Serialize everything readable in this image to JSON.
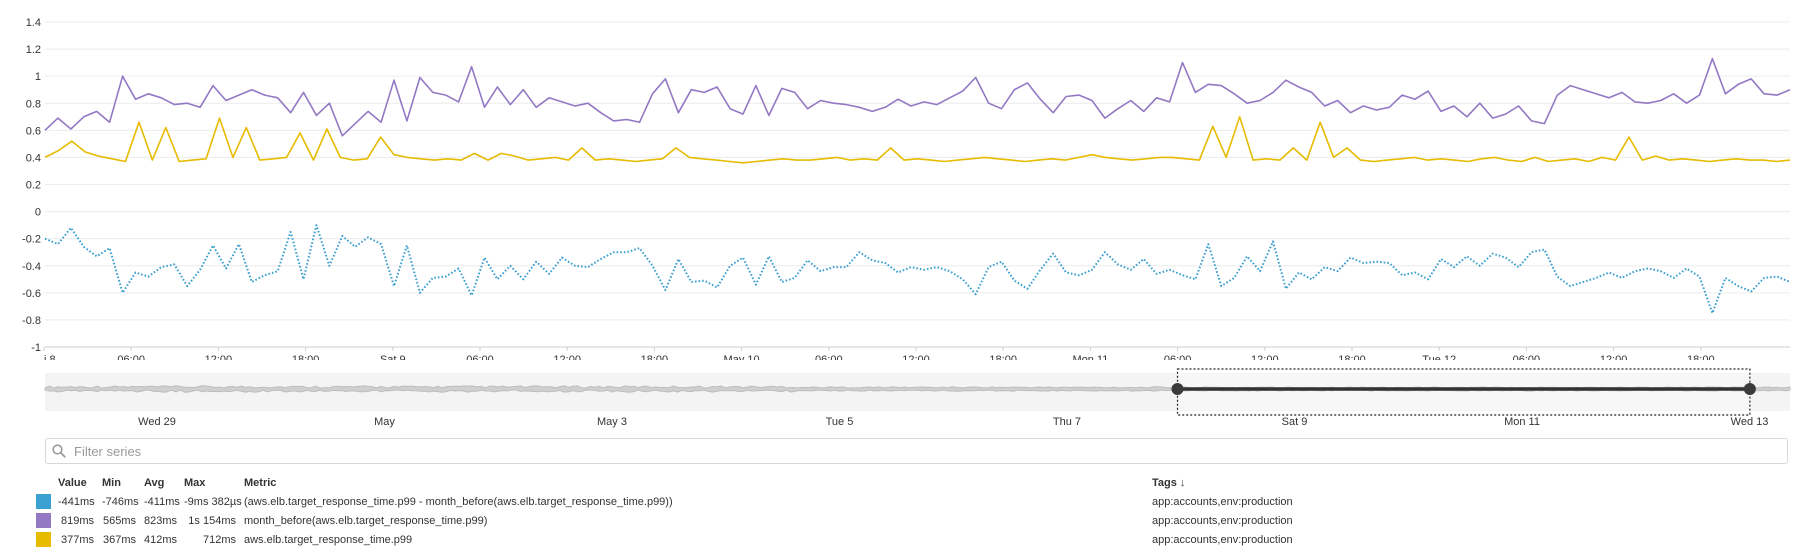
{
  "chart_data": [
    {
      "type": "line",
      "ylim": [
        -1,
        1.4
      ],
      "y_ticks": [
        "1.4",
        "1.2",
        "1",
        "0.8",
        "0.6",
        "0.4",
        "0.2",
        "0",
        "-0.2",
        "-0.4",
        "-0.6",
        "-0.8",
        "-1"
      ],
      "x_ticks": [
        "i 8",
        "06:00",
        "12:00",
        "18:00",
        "Sat 9",
        "06:00",
        "12:00",
        "18:00",
        "May 10",
        "06:00",
        "12:00",
        "18:00",
        "Mon 11",
        "06:00",
        "12:00",
        "18:00",
        "Tue 12",
        "06:00",
        "12:00",
        "18:00"
      ],
      "grid": true,
      "series": [
        {
          "name": "month_before(aws.elb.target_response_time.p99)",
          "color": "#9378c4",
          "style": "solid",
          "values": [
            0.6,
            0.69,
            0.61,
            0.7,
            0.74,
            0.66,
            1.0,
            0.83,
            0.87,
            0.84,
            0.79,
            0.8,
            0.77,
            0.93,
            0.82,
            0.86,
            0.9,
            0.86,
            0.84,
            0.73,
            0.88,
            0.71,
            0.8,
            0.56,
            0.65,
            0.74,
            0.66,
            0.97,
            0.67,
            0.99,
            0.88,
            0.86,
            0.81,
            1.07,
            0.77,
            0.92,
            0.79,
            0.9,
            0.77,
            0.84,
            0.81,
            0.78,
            0.8,
            0.73,
            0.67,
            0.68,
            0.66,
            0.87,
            0.98,
            0.73,
            0.9,
            0.88,
            0.92,
            0.76,
            0.72,
            0.93,
            0.71,
            0.91,
            0.88,
            0.76,
            0.82,
            0.8,
            0.79,
            0.77,
            0.74,
            0.77,
            0.83,
            0.78,
            0.81,
            0.79,
            0.84,
            0.89,
            0.99,
            0.8,
            0.76,
            0.9,
            0.95,
            0.83,
            0.73,
            0.85,
            0.86,
            0.82,
            0.69,
            0.76,
            0.82,
            0.74,
            0.84,
            0.81,
            1.1,
            0.88,
            0.94,
            0.93,
            0.87,
            0.8,
            0.82,
            0.88,
            0.97,
            0.92,
            0.88,
            0.78,
            0.82,
            0.73,
            0.78,
            0.75,
            0.77,
            0.86,
            0.83,
            0.89,
            0.74,
            0.78,
            0.7,
            0.8,
            0.69,
            0.72,
            0.78,
            0.67,
            0.65,
            0.86,
            0.93,
            0.9,
            0.87,
            0.84,
            0.88,
            0.81,
            0.8,
            0.82,
            0.87,
            0.8,
            0.86,
            1.13,
            0.87,
            0.94,
            0.98,
            0.87,
            0.86,
            0.9
          ],
          "min_label": "565ms",
          "avg_label": "823ms",
          "max_label": "1s 154ms",
          "value_label": "819ms"
        },
        {
          "name": "aws.elb.target_response_time.p99",
          "color": "#e6bb00",
          "style": "solid",
          "values": [
            0.4,
            0.45,
            0.52,
            0.44,
            0.41,
            0.39,
            0.37,
            0.66,
            0.38,
            0.62,
            0.37,
            0.38,
            0.39,
            0.69,
            0.4,
            0.62,
            0.38,
            0.39,
            0.4,
            0.58,
            0.38,
            0.61,
            0.4,
            0.38,
            0.39,
            0.55,
            0.42,
            0.4,
            0.39,
            0.38,
            0.39,
            0.38,
            0.43,
            0.38,
            0.43,
            0.41,
            0.38,
            0.39,
            0.4,
            0.38,
            0.47,
            0.38,
            0.39,
            0.38,
            0.37,
            0.38,
            0.39,
            0.47,
            0.4,
            0.39,
            0.38,
            0.37,
            0.36,
            0.37,
            0.38,
            0.39,
            0.38,
            0.38,
            0.39,
            0.4,
            0.38,
            0.39,
            0.38,
            0.47,
            0.38,
            0.39,
            0.38,
            0.37,
            0.38,
            0.39,
            0.4,
            0.39,
            0.38,
            0.37,
            0.38,
            0.39,
            0.38,
            0.4,
            0.42,
            0.4,
            0.39,
            0.38,
            0.39,
            0.4,
            0.4,
            0.39,
            0.38,
            0.63,
            0.4,
            0.7,
            0.38,
            0.39,
            0.38,
            0.47,
            0.38,
            0.66,
            0.4,
            0.47,
            0.38,
            0.37,
            0.38,
            0.39,
            0.4,
            0.38,
            0.39,
            0.38,
            0.37,
            0.39,
            0.4,
            0.38,
            0.37,
            0.4,
            0.37,
            0.38,
            0.39,
            0.37,
            0.4,
            0.38,
            0.55,
            0.38,
            0.41,
            0.38,
            0.39,
            0.38,
            0.37,
            0.38,
            0.39,
            0.38,
            0.38,
            0.37,
            0.38
          ],
          "min_label": "367ms",
          "avg_label": "412ms",
          "max_label": "712ms",
          "value_label": "377ms"
        },
        {
          "name": "(aws.elb.target_response_time.p99 - month_before(aws.elb.target_response_time.p99))",
          "color": "#3a9fd1",
          "style": "dotted",
          "values": [
            -0.2,
            -0.24,
            -0.12,
            -0.26,
            -0.33,
            -0.27,
            -0.6,
            -0.45,
            -0.48,
            -0.41,
            -0.39,
            -0.55,
            -0.43,
            -0.25,
            -0.42,
            -0.24,
            -0.52,
            -0.47,
            -0.44,
            -0.15,
            -0.5,
            -0.1,
            -0.4,
            -0.18,
            -0.26,
            -0.19,
            -0.24,
            -0.55,
            -0.25,
            -0.6,
            -0.49,
            -0.48,
            -0.42,
            -0.62,
            -0.34,
            -0.5,
            -0.4,
            -0.5,
            -0.37,
            -0.46,
            -0.34,
            -0.4,
            -0.41,
            -0.35,
            -0.3,
            -0.3,
            -0.27,
            -0.4,
            -0.58,
            -0.35,
            -0.52,
            -0.51,
            -0.56,
            -0.4,
            -0.34,
            -0.54,
            -0.33,
            -0.52,
            -0.49,
            -0.36,
            -0.44,
            -0.41,
            -0.41,
            -0.3,
            -0.36,
            -0.38,
            -0.45,
            -0.41,
            -0.43,
            -0.41,
            -0.44,
            -0.5,
            -0.61,
            -0.41,
            -0.37,
            -0.51,
            -0.57,
            -0.43,
            -0.31,
            -0.45,
            -0.47,
            -0.43,
            -0.3,
            -0.39,
            -0.43,
            -0.35,
            -0.46,
            -0.43,
            -0.47,
            -0.5,
            -0.24,
            -0.55,
            -0.49,
            -0.33,
            -0.44,
            -0.22,
            -0.57,
            -0.45,
            -0.5,
            -0.41,
            -0.44,
            -0.34,
            -0.38,
            -0.37,
            -0.38,
            -0.47,
            -0.45,
            -0.5,
            -0.35,
            -0.41,
            -0.33,
            -0.4,
            -0.31,
            -0.34,
            -0.41,
            -0.3,
            -0.28,
            -0.48,
            -0.55,
            -0.52,
            -0.49,
            -0.45,
            -0.49,
            -0.44,
            -0.42,
            -0.44,
            -0.49,
            -0.42,
            -0.48,
            -0.75,
            -0.49,
            -0.55,
            -0.59,
            -0.49,
            -0.48,
            -0.52
          ],
          "min_label": "-746ms",
          "avg_label": "-411ms",
          "max_label": "-9ms 382µs",
          "value_label": "-441ms"
        }
      ]
    },
    {
      "type": "area",
      "role": "time-navigator",
      "x_ticks": [
        "Wed 29",
        "May",
        "May 3",
        "Tue 5",
        "Thu 7",
        "Sat 9",
        "Mon 11",
        "Wed 13"
      ],
      "selection_range": [
        0.649,
        0.977
      ]
    }
  ],
  "filter": {
    "placeholder": "Filter series"
  },
  "legend": {
    "headers": {
      "value": "Value",
      "min": "Min",
      "avg": "Avg",
      "max": "Max",
      "metric": "Metric",
      "tags": "Tags ↓"
    },
    "rows": [
      {
        "color": "#3a9fd1",
        "value": "-441ms",
        "min": "-746ms",
        "avg": "-411ms",
        "max": "-9ms 382µs",
        "metric": "(aws.elb.target_response_time.p99 - month_before(aws.elb.target_response_time.p99))",
        "tags": "app:accounts,env:production"
      },
      {
        "color": "#9378c4",
        "value": "819ms",
        "min": "565ms",
        "avg": "823ms",
        "max": "1s 154ms",
        "metric": "month_before(aws.elb.target_response_time.p99)",
        "tags": "app:accounts,env:production"
      },
      {
        "color": "#e6bb00",
        "value": "377ms",
        "min": "367ms",
        "avg": "412ms",
        "max": "712ms",
        "metric": "aws.elb.target_response_time.p99",
        "tags": "app:accounts,env:production"
      }
    ]
  }
}
